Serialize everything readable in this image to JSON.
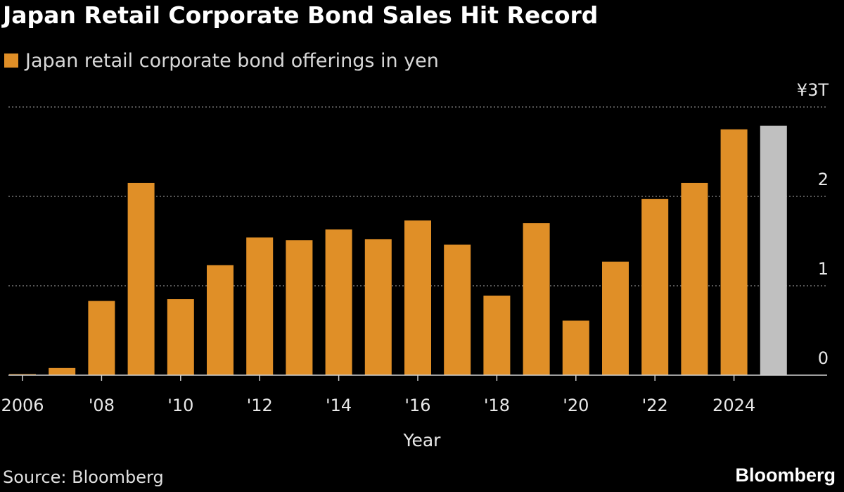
{
  "title": "Japan Retail Corporate Bond Sales Hit Record",
  "legend": {
    "label": "Japan retail corporate bond offerings in yen",
    "color": "#e08f27"
  },
  "source": "Source: Bloomberg",
  "brand": "Bloomberg",
  "colors": {
    "background": "#000000",
    "bar": "#e08f27",
    "highlight_bar": "#c0c0c0",
    "gridline": "#8a8a8a",
    "text": "#e8e8e8"
  },
  "chart_data": {
    "type": "bar",
    "title": "Japan Retail Corporate Bond Sales Hit Record",
    "xlabel": "Year",
    "ylabel": "",
    "ylim": [
      0,
      3
    ],
    "y_unit": "trillion yen",
    "y_ticks": [
      {
        "value": 0,
        "label": "0"
      },
      {
        "value": 1,
        "label": "1"
      },
      {
        "value": 2,
        "label": "2"
      },
      {
        "value": 3,
        "label": "¥3T"
      }
    ],
    "grid": true,
    "legend_position": "top-left",
    "categories": [
      "2006",
      "2007",
      "2008",
      "2009",
      "2010",
      "2011",
      "2012",
      "2013",
      "2014",
      "2015",
      "2016",
      "2017",
      "2018",
      "2019",
      "2020",
      "2021",
      "2022",
      "2023",
      "2024",
      "2025"
    ],
    "x_tick_labels": [
      {
        "category": "2006",
        "label": "2006"
      },
      {
        "category": "2008",
        "label": "'08"
      },
      {
        "category": "2010",
        "label": "'10"
      },
      {
        "category": "2012",
        "label": "'12"
      },
      {
        "category": "2014",
        "label": "'14"
      },
      {
        "category": "2016",
        "label": "'16"
      },
      {
        "category": "2018",
        "label": "'18"
      },
      {
        "category": "2020",
        "label": "'20"
      },
      {
        "category": "2022",
        "label": "'22"
      },
      {
        "category": "2024",
        "label": "2024"
      }
    ],
    "series": [
      {
        "name": "Japan retail corporate bond offerings in yen",
        "values": [
          0.01,
          0.08,
          0.83,
          2.15,
          0.85,
          1.23,
          1.54,
          1.51,
          1.63,
          1.52,
          1.73,
          1.46,
          0.89,
          1.7,
          0.61,
          1.27,
          1.97,
          2.15,
          2.75,
          2.79
        ],
        "highlight_index": 19
      }
    ]
  }
}
